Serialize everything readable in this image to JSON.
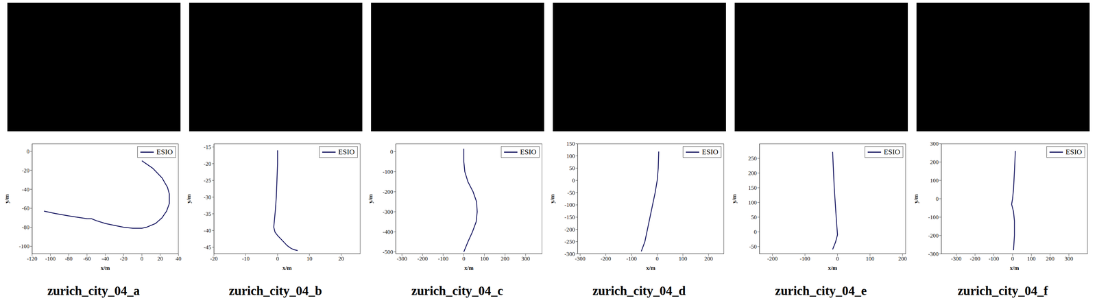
{
  "chart_data": [
    {
      "type": "line",
      "title": "zurich_city_04_a",
      "x_label": "x/m",
      "y_label": "y/m",
      "legend": "top right",
      "grid": false,
      "xlim": [
        -120,
        40
      ],
      "xticks": [
        -120,
        -100,
        -80,
        -60,
        -40,
        -20,
        0,
        20,
        40
      ],
      "ylim": [
        -108,
        8
      ],
      "yticks": [
        -100,
        -80,
        -60,
        -40,
        -20,
        0
      ],
      "x": [
        0,
        12,
        22,
        28,
        30,
        30,
        27,
        22,
        15,
        5,
        0,
        -10,
        -20,
        -30,
        -40,
        -50,
        -55,
        -58,
        -60,
        -70,
        -80,
        -95,
        -107
      ],
      "series": [
        {
          "name": "ESIO",
          "color": "#14145f",
          "values": [
            -10,
            -18,
            -28,
            -38,
            -45,
            -55,
            -63,
            -70,
            -76,
            -80,
            -81,
            -81,
            -80,
            -78,
            -76,
            -73,
            -71,
            -71,
            -71,
            -69.5,
            -68,
            -65.5,
            -63
          ]
        }
      ]
    },
    {
      "type": "line",
      "title": "zurich_city_04_b",
      "x_label": "x/m",
      "y_label": "y/m",
      "legend": "top right",
      "grid": false,
      "xlim": [
        -20,
        26
      ],
      "xticks": [
        -20,
        -10,
        0,
        10,
        20
      ],
      "ylim": [
        -47,
        -14
      ],
      "yticks": [
        -45,
        -40,
        -35,
        -30,
        -25,
        -20,
        -15
      ],
      "x": [
        0,
        0,
        -0.2,
        -0.4,
        -0.7,
        -1,
        -1.2,
        -0.8,
        0,
        1,
        2,
        3,
        4,
        5,
        6.3
      ],
      "series": [
        {
          "name": "ESIO",
          "color": "#14145f",
          "values": [
            -16,
            -20,
            -25,
            -30,
            -34,
            -37,
            -39,
            -40.5,
            -41.5,
            -42.5,
            -43.5,
            -44.5,
            -45.2,
            -45.7,
            -46
          ]
        }
      ]
    },
    {
      "type": "line",
      "title": "zurich_city_04_c",
      "x_label": "x/m",
      "y_label": "y/m",
      "legend": "top right",
      "grid": false,
      "xlim": [
        -330,
        380
      ],
      "xticks": [
        -300,
        -200,
        -100,
        0,
        100,
        200,
        300
      ],
      "ylim": [
        -510,
        40
      ],
      "yticks": [
        -500,
        -400,
        -300,
        -200,
        -100,
        0
      ],
      "x": [
        0,
        0,
        5,
        20,
        45,
        62,
        65,
        60,
        42,
        20,
        0
      ],
      "series": [
        {
          "name": "ESIO",
          "color": "#14145f",
          "values": [
            15,
            -50,
            -100,
            -150,
            -200,
            -250,
            -300,
            -350,
            -400,
            -450,
            -500
          ]
        }
      ]
    },
    {
      "type": "line",
      "title": "zurich_city_04_d",
      "x_label": "x/m",
      "y_label": "y/m",
      "legend": "top right",
      "grid": false,
      "xlim": [
        -310,
        260
      ],
      "xticks": [
        -300,
        -200,
        -100,
        0,
        100,
        200
      ],
      "ylim": [
        -300,
        150
      ],
      "yticks": [
        -300,
        -250,
        -200,
        -150,
        -100,
        -50,
        0,
        50,
        100,
        150
      ],
      "x": [
        6,
        4,
        0,
        -8,
        -18,
        -28,
        -38,
        -48,
        -62
      ],
      "series": [
        {
          "name": "ESIO",
          "color": "#14145f",
          "values": [
            118,
            50,
            0,
            -50,
            -100,
            -150,
            -200,
            -250,
            -290
          ]
        }
      ]
    },
    {
      "type": "line",
      "title": "zurich_city_04_e",
      "x_label": "x/m",
      "y_label": "y/m",
      "legend": "top right",
      "grid": false,
      "xlim": [
        -240,
        210
      ],
      "xticks": [
        -200,
        -100,
        0,
        100,
        200
      ],
      "ylim": [
        -75,
        300
      ],
      "yticks": [
        -50,
        0,
        50,
        100,
        150,
        200,
        250
      ],
      "x": [
        -15,
        -10,
        -4,
        0,
        -6,
        -15
      ],
      "series": [
        {
          "name": "ESIO",
          "color": "#14145f",
          "values": [
            272,
            150,
            50,
            -10,
            -35,
            -60
          ]
        }
      ]
    },
    {
      "type": "line",
      "title": "zurich_city_04_f",
      "x_label": "x/m",
      "y_label": "y/m",
      "legend": "top right",
      "grid": false,
      "xlim": [
        -380,
        400
      ],
      "xticks": [
        -300,
        -200,
        -100,
        0,
        100,
        200,
        300
      ],
      "ylim": [
        -300,
        300
      ],
      "yticks": [
        -300,
        -200,
        -100,
        0,
        100,
        200,
        300
      ],
      "x": [
        15,
        10,
        5,
        0,
        -5,
        5,
        10,
        10,
        5
      ],
      "series": [
        {
          "name": "ESIO",
          "color": "#14145f",
          "values": [
            260,
            150,
            50,
            0,
            -30,
            -70,
            -120,
            -200,
            -280
          ]
        }
      ]
    }
  ]
}
